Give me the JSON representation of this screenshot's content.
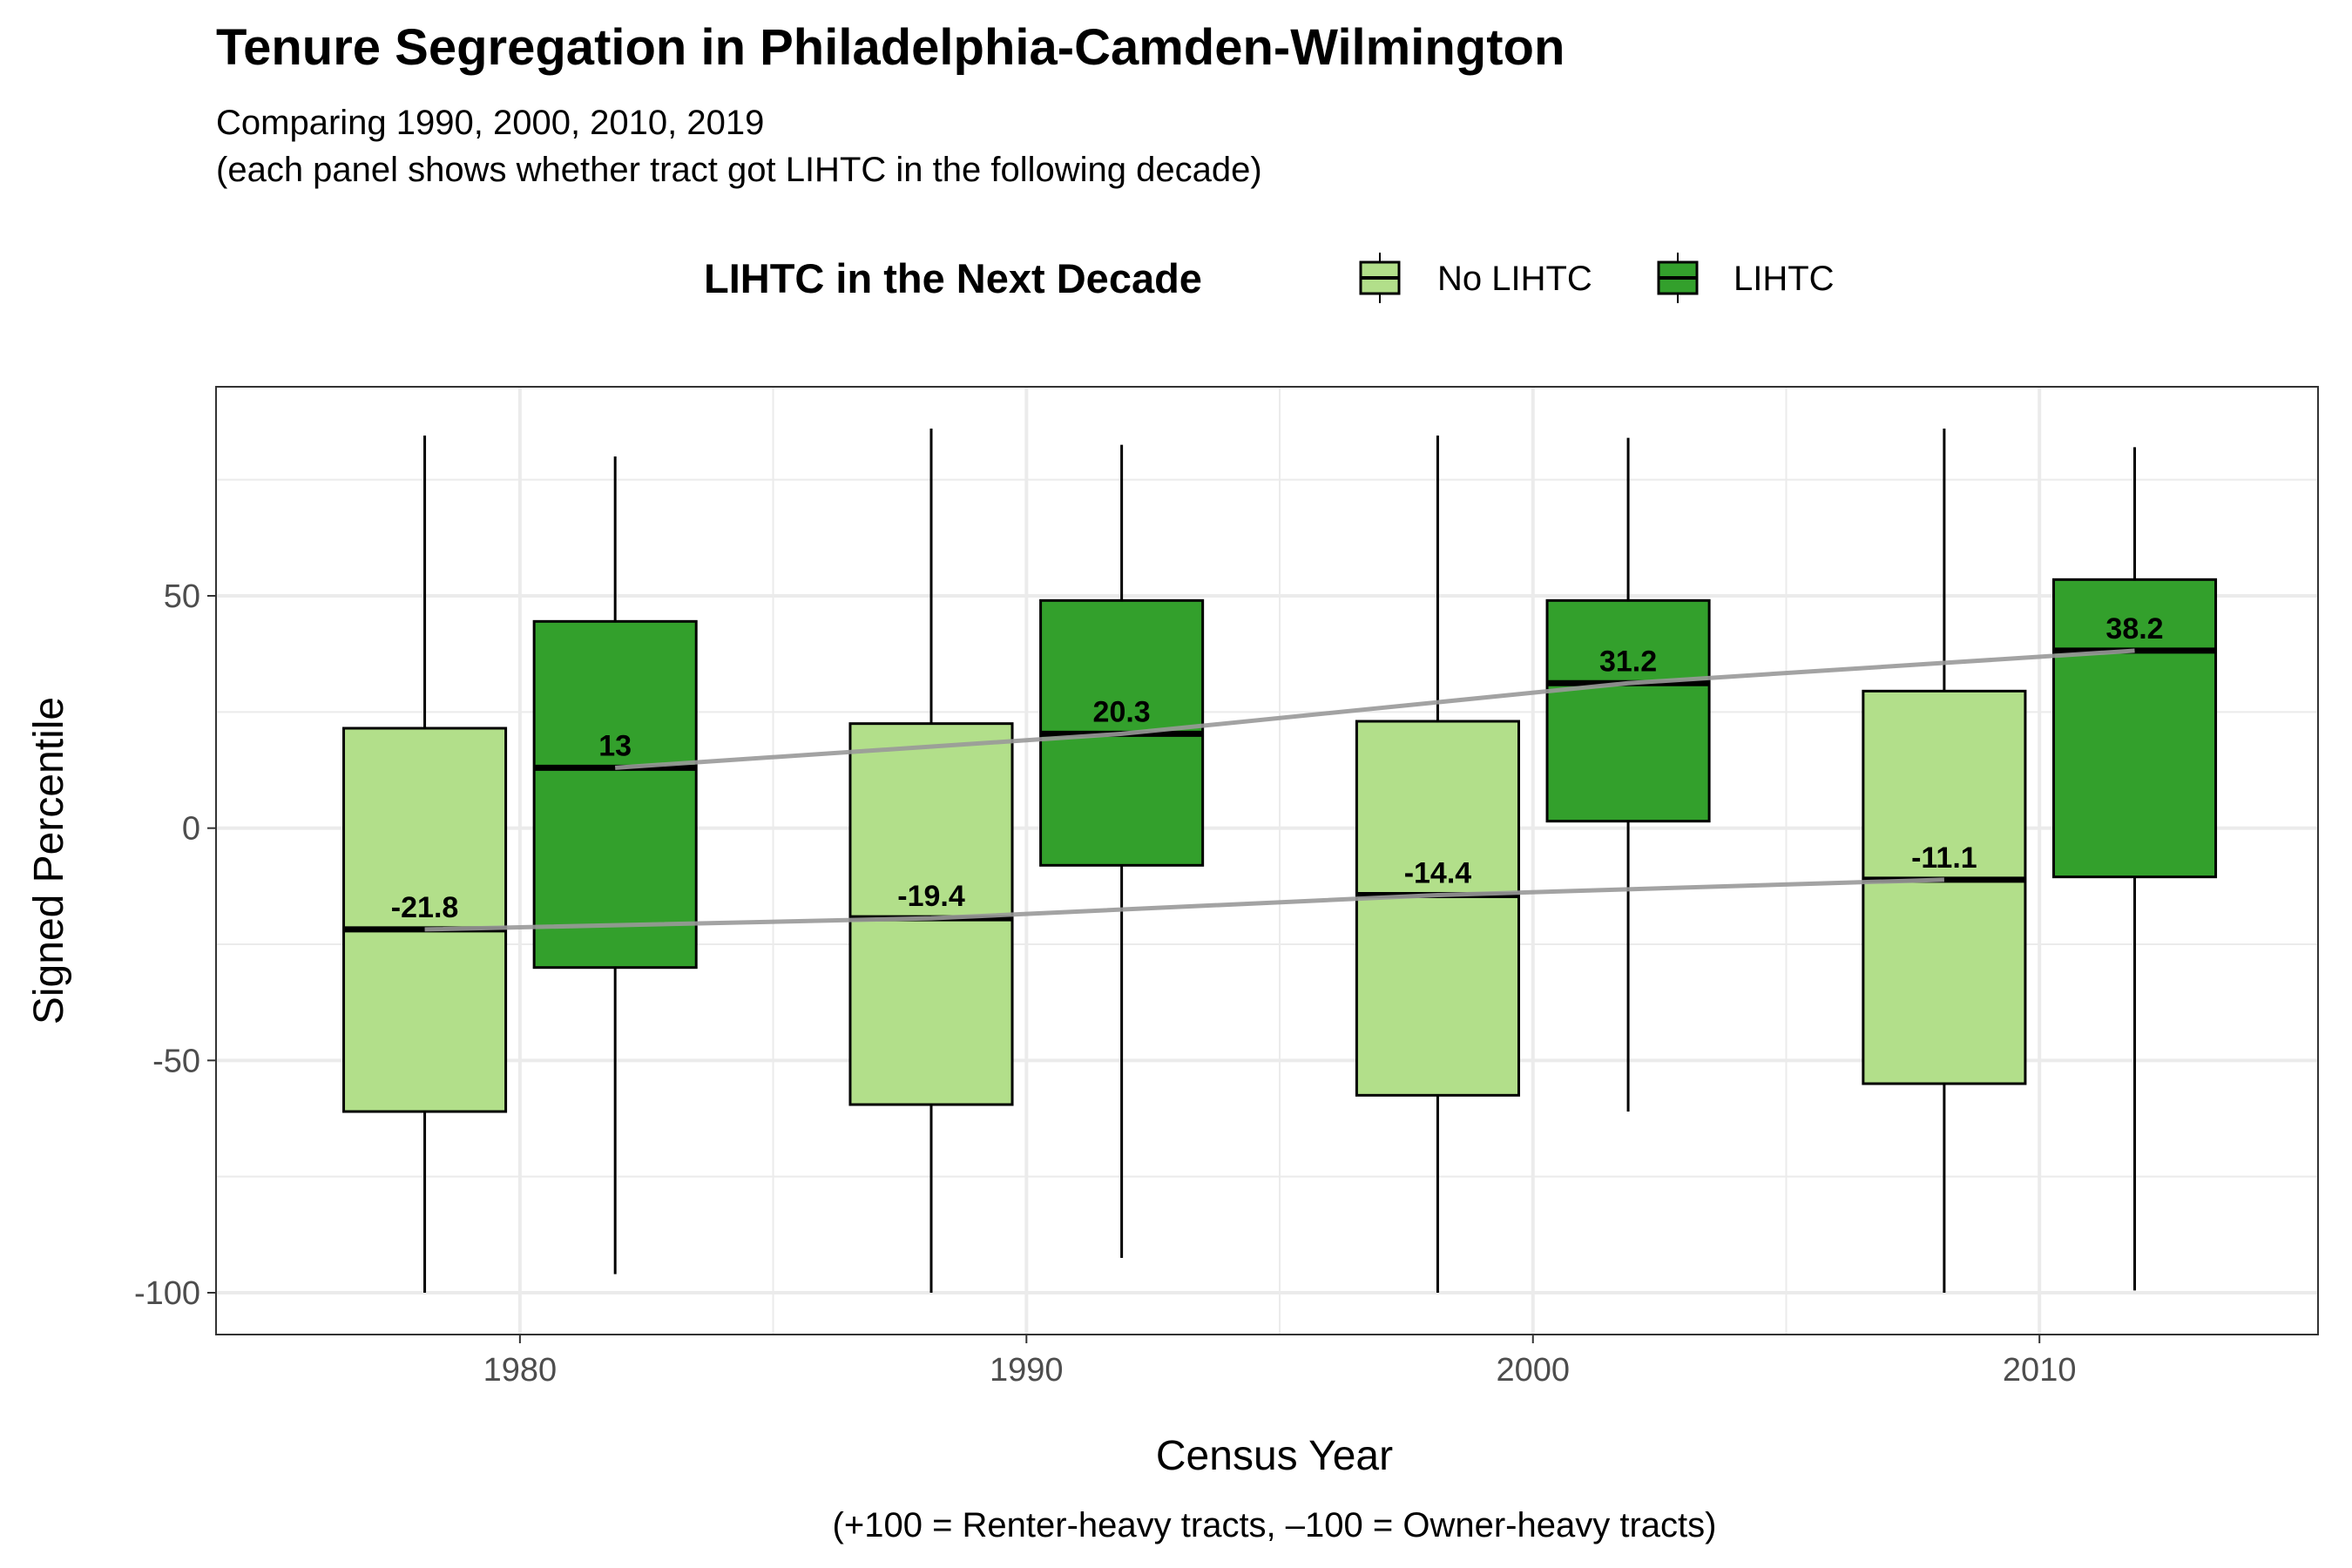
{
  "title": "Tenure Segregation in Philadelphia-Camden-Wilmington",
  "subtitle_line1": "Comparing 1990, 2000, 2010, 2019",
  "subtitle_line2": "(each panel shows whether tract got LIHTC in the following decade)",
  "caption": "(+100 = Renter-heavy tracts, –100 = Owner-heavy tracts)",
  "colors": {
    "no_lihtc": "#b2df8a",
    "lihtc": "#33a02c",
    "trend_line": "#999999",
    "grid": "#ebebeb",
    "panel_border": "#333333"
  },
  "chart_data": {
    "type": "box",
    "title": "Tenure Segregation in Philadelphia-Camden-Wilmington",
    "xlabel": "Census Year",
    "ylabel": "Signed Percentile",
    "x_ticks": [
      1980,
      1990,
      2000,
      2010
    ],
    "y_ticks": [
      -100,
      -50,
      0,
      50
    ],
    "xlim": [
      1974,
      2015.5
    ],
    "ylim": [
      -109,
      95
    ],
    "legend": {
      "title": "LIHTC in the Next Decade",
      "position": "top",
      "entries": [
        "No LIHTC",
        "LIHTC"
      ]
    },
    "grid": true,
    "series": [
      {
        "name": "No LIHTC",
        "color": "#b2df8a",
        "boxes": [
          {
            "year": 1980,
            "min": -100,
            "q1": -61,
            "median": -21.8,
            "q3": 21.5,
            "max": 84.5
          },
          {
            "year": 1990,
            "min": -100,
            "q1": -59.5,
            "median": -19.4,
            "q3": 22.5,
            "max": 86
          },
          {
            "year": 2000,
            "min": -100,
            "q1": -57.5,
            "median": -14.4,
            "q3": 23,
            "max": 84.5
          },
          {
            "year": 2010,
            "min": -100,
            "q1": -55,
            "median": -11.1,
            "q3": 29.5,
            "max": 86
          }
        ]
      },
      {
        "name": "LIHTC",
        "color": "#33a02c",
        "boxes": [
          {
            "year": 1980,
            "min": -96,
            "q1": -30,
            "median": 13,
            "q3": 44.5,
            "max": 80
          },
          {
            "year": 1990,
            "min": -92.5,
            "q1": -8,
            "median": 20.3,
            "q3": 49,
            "max": 82.5
          },
          {
            "year": 2000,
            "min": -61,
            "q1": 1.5,
            "median": 31.2,
            "q3": 49,
            "max": 84
          },
          {
            "year": 2010,
            "min": -99.5,
            "q1": -10.5,
            "median": 38.2,
            "q3": 53.5,
            "max": 82
          }
        ]
      }
    ],
    "median_labels": {
      "No LIHTC": [
        "-21.8",
        "-19.4",
        "-14.4",
        "-11.1"
      ],
      "LIHTC": [
        "13",
        "20.3",
        "31.2",
        "38.2"
      ]
    }
  }
}
